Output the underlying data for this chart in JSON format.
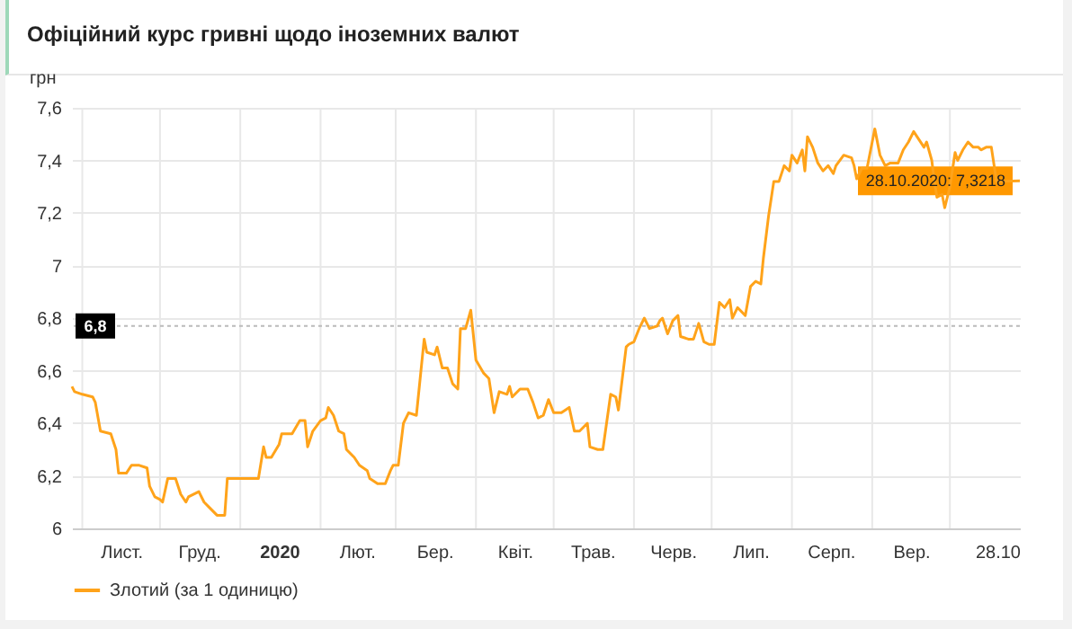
{
  "chart_data": {
    "type": "line",
    "title": "Офіційний курс гривні щодо іноземних валют",
    "ylabel": "грн",
    "x": [
      "2019-10-28",
      "2019-10-29",
      "2019-11-01",
      "2019-11-05",
      "2019-11-06",
      "2019-11-08",
      "2019-11-12",
      "2019-11-14",
      "2019-11-15",
      "2019-11-18",
      "2019-11-20",
      "2019-11-23",
      "2019-11-26",
      "2019-11-27",
      "2019-11-29",
      "2019-12-01",
      "2019-12-02",
      "2019-12-04",
      "2019-12-07",
      "2019-12-09",
      "2019-12-11",
      "2019-12-12",
      "2019-12-16",
      "2019-12-18",
      "2019-12-20",
      "2019-12-23",
      "2019-12-26",
      "2019-12-27",
      "2020-01-01",
      "2020-01-08",
      "2020-01-10",
      "2020-01-11",
      "2020-01-13",
      "2020-01-16",
      "2020-01-17",
      "2020-01-21",
      "2020-01-24",
      "2020-01-26",
      "2020-01-27",
      "2020-01-29",
      "2020-02-01",
      "2020-02-03",
      "2020-02-04",
      "2020-02-06",
      "2020-02-08",
      "2020-02-10",
      "2020-02-11",
      "2020-02-14",
      "2020-02-16",
      "2020-02-19",
      "2020-02-20",
      "2020-02-23",
      "2020-02-26",
      "2020-02-28",
      "2020-02-29",
      "2020-03-02",
      "2020-03-04",
      "2020-03-06",
      "2020-03-09",
      "2020-03-12",
      "2020-03-13",
      "2020-03-16",
      "2020-03-17",
      "2020-03-19",
      "2020-03-21",
      "2020-03-23",
      "2020-03-25",
      "2020-03-26",
      "2020-03-28",
      "2020-03-30",
      "2020-04-01",
      "2020-04-04",
      "2020-04-06",
      "2020-04-08",
      "2020-04-10",
      "2020-04-13",
      "2020-04-14",
      "2020-04-15",
      "2020-04-18",
      "2020-04-21",
      "2020-04-23",
      "2020-04-25",
      "2020-04-27",
      "2020-04-29",
      "2020-05-01",
      "2020-05-04",
      "2020-05-07",
      "2020-05-09",
      "2020-05-11",
      "2020-05-14",
      "2020-05-15",
      "2020-05-18",
      "2020-05-20",
      "2020-05-23",
      "2020-05-25",
      "2020-05-26",
      "2020-05-29",
      "2020-05-30",
      "2020-06-01",
      "2020-06-03",
      "2020-06-05",
      "2020-06-07",
      "2020-06-10",
      "2020-06-11",
      "2020-06-12",
      "2020-06-14",
      "2020-06-16",
      "2020-06-18",
      "2020-06-19",
      "2020-06-22",
      "2020-06-24",
      "2020-06-26",
      "2020-06-28",
      "2020-06-30",
      "2020-07-02",
      "2020-07-04",
      "2020-07-06",
      "2020-07-08",
      "2020-07-09",
      "2020-07-11",
      "2020-07-12",
      "2020-07-14",
      "2020-07-16",
      "2020-07-18",
      "2020-07-20",
      "2020-07-21",
      "2020-07-23",
      "2020-07-25",
      "2020-07-27",
      "2020-07-29",
      "2020-07-31",
      "2020-08-01",
      "2020-08-03",
      "2020-08-05",
      "2020-08-06",
      "2020-08-07",
      "2020-08-09",
      "2020-08-11",
      "2020-08-13",
      "2020-08-15",
      "2020-08-17",
      "2020-08-18",
      "2020-08-21",
      "2020-08-24",
      "2020-08-25",
      "2020-08-26",
      "2020-08-28",
      "2020-08-30",
      "2020-09-01",
      "2020-09-02",
      "2020-09-04",
      "2020-09-06",
      "2020-09-08",
      "2020-09-11",
      "2020-09-13",
      "2020-09-15",
      "2020-09-17",
      "2020-09-19",
      "2020-09-21",
      "2020-09-22",
      "2020-09-24",
      "2020-09-25",
      "2020-09-26",
      "2020-09-28",
      "2020-09-29",
      "2020-10-01",
      "2020-10-03",
      "2020-10-04",
      "2020-10-06",
      "2020-10-08",
      "2020-10-10",
      "2020-10-12",
      "2020-10-13",
      "2020-10-15",
      "2020-10-17",
      "2020-10-19",
      "2020-10-28"
    ],
    "series": [
      {
        "name": "Злотий (за 1 одиницю)",
        "color": "#ffa31a",
        "values": [
          6.54,
          6.52,
          6.51,
          6.5,
          6.48,
          6.37,
          6.36,
          6.3,
          6.21,
          6.21,
          6.24,
          6.24,
          6.23,
          6.16,
          6.12,
          6.11,
          6.1,
          6.19,
          6.19,
          6.13,
          6.1,
          6.12,
          6.14,
          6.1,
          6.08,
          6.05,
          6.05,
          6.19,
          6.19,
          6.19,
          6.31,
          6.27,
          6.27,
          6.32,
          6.36,
          6.36,
          6.41,
          6.41,
          6.31,
          6.37,
          6.41,
          6.42,
          6.46,
          6.43,
          6.37,
          6.36,
          6.3,
          6.27,
          6.24,
          6.22,
          6.19,
          6.17,
          6.17,
          6.22,
          6.24,
          6.24,
          6.4,
          6.44,
          6.43,
          6.72,
          6.67,
          6.66,
          6.69,
          6.61,
          6.61,
          6.55,
          6.53,
          6.76,
          6.76,
          6.83,
          6.64,
          6.59,
          6.57,
          6.44,
          6.52,
          6.51,
          6.54,
          6.5,
          6.53,
          6.53,
          6.48,
          6.42,
          6.43,
          6.49,
          6.44,
          6.44,
          6.46,
          6.37,
          6.37,
          6.4,
          6.31,
          6.3,
          6.3,
          6.51,
          6.5,
          6.45,
          6.69,
          6.7,
          6.71,
          6.76,
          6.8,
          6.76,
          6.77,
          6.79,
          6.8,
          6.74,
          6.79,
          6.81,
          6.73,
          6.72,
          6.72,
          6.78,
          6.71,
          6.7,
          6.7,
          6.86,
          6.84,
          6.87,
          6.8,
          6.84,
          6.83,
          6.81,
          6.92,
          6.94,
          6.93,
          7.03,
          7.19,
          7.32,
          7.32,
          7.38,
          7.36,
          7.42,
          7.39,
          7.44,
          7.36,
          7.49,
          7.45,
          7.39,
          7.36,
          7.38,
          7.35,
          7.38,
          7.42,
          7.41,
          7.38,
          7.33,
          7.37,
          7.37,
          7.47,
          7.52,
          7.42,
          7.38,
          7.39,
          7.39,
          7.44,
          7.47,
          7.51,
          7.48,
          7.45,
          7.47,
          7.4,
          7.32,
          7.26,
          7.27,
          7.22,
          7.3,
          7.43,
          7.4,
          7.44,
          7.47,
          7.45,
          7.45,
          7.44,
          7.45,
          7.45,
          7.32,
          7.3218
        ]
      }
    ],
    "xlim": [
      "2019-10-28",
      "2020-10-28"
    ],
    "xticks": [
      {
        "value": "2019-11-01",
        "label": null
      },
      {
        "value": "2019-11-16",
        "label": "Лист."
      },
      {
        "value": "2019-12-01",
        "label": null
      },
      {
        "value": "2019-12-16",
        "label": "Груд."
      },
      {
        "value": "2020-01-01",
        "label": null
      },
      {
        "value": "2020-01-16",
        "label": "2020"
      },
      {
        "value": "2020-02-01",
        "label": null
      },
      {
        "value": "2020-02-15",
        "label": "Лют."
      },
      {
        "value": "2020-03-01",
        "label": null
      },
      {
        "value": "2020-03-16",
        "label": "Бер."
      },
      {
        "value": "2020-04-01",
        "label": null
      },
      {
        "value": "2020-04-16",
        "label": "Квіт."
      },
      {
        "value": "2020-05-01",
        "label": null
      },
      {
        "value": "2020-05-16",
        "label": "Трав."
      },
      {
        "value": "2020-06-01",
        "label": null
      },
      {
        "value": "2020-06-16",
        "label": "Черв."
      },
      {
        "value": "2020-07-01",
        "label": null
      },
      {
        "value": "2020-07-16",
        "label": "Лип."
      },
      {
        "value": "2020-08-01",
        "label": null
      },
      {
        "value": "2020-08-16",
        "label": "Серп."
      },
      {
        "value": "2020-09-01",
        "label": null
      },
      {
        "value": "2020-09-16",
        "label": "Вер."
      },
      {
        "value": "2020-10-01",
        "label": null
      },
      {
        "value": "2020-10-28",
        "label": "28.10"
      }
    ],
    "ylim": [
      6,
      7.6
    ],
    "yticks": [
      6,
      {
        "value": 6.2,
        "label": "6,2"
      },
      {
        "value": 6.4,
        "label": "6,4"
      },
      {
        "value": 6.6,
        "label": "6,6"
      },
      {
        "value": 6.8,
        "label": "6,8"
      },
      7,
      {
        "value": 7.2,
        "label": "7,2"
      },
      {
        "value": 7.4,
        "label": "7,4"
      },
      {
        "value": 7.6,
        "label": "7,6"
      }
    ],
    "ref_lines": [
      {
        "axis": "y",
        "value": 6.77,
        "label": "6,8",
        "color": "#bbbbbb",
        "line_style": "dotted"
      }
    ],
    "annotations": [
      {
        "text": "28.10.2020: 7,3218",
        "x": "2020-10-28",
        "y": 7.3218
      }
    ],
    "grid": true,
    "legend": "bottom",
    "marker": "none",
    "line_style": "solid"
  }
}
